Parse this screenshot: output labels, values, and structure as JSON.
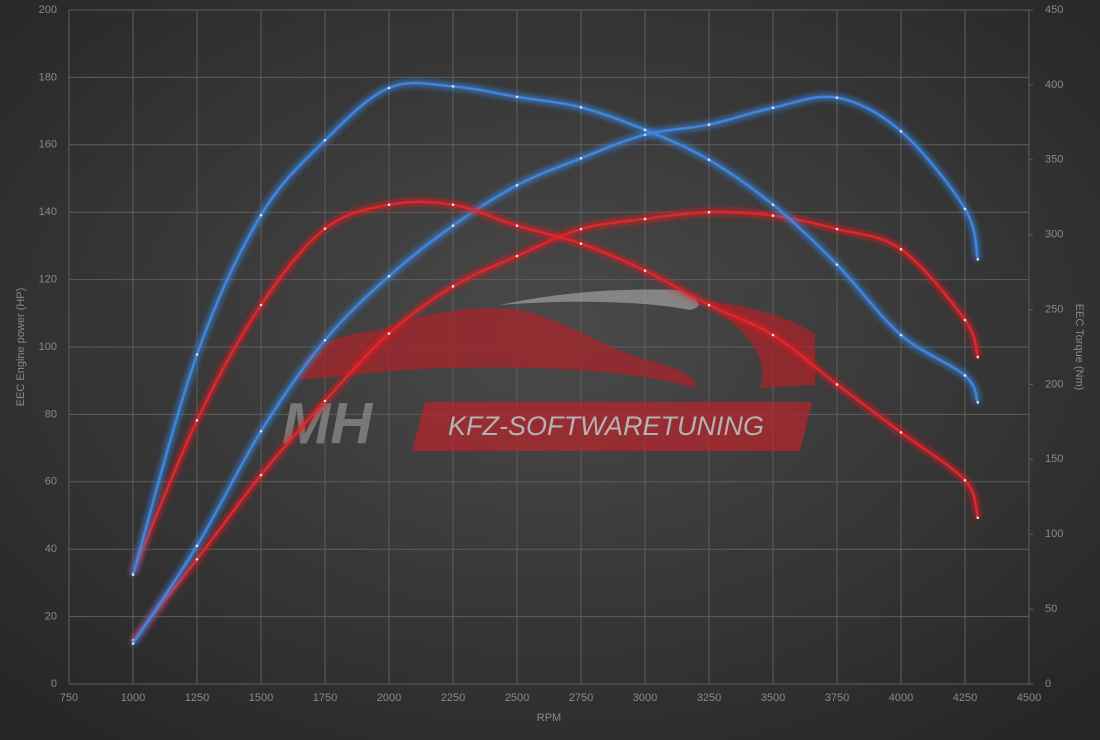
{
  "chart_data": {
    "type": "line",
    "x_label": "RPM",
    "y_label": "EEC Engine power (HP)",
    "y2_label": "EEC Torque (Nm)",
    "watermark_logo": "MH",
    "watermark_text": "KFZ-SOFTWARETUNING",
    "x": [
      1000,
      1250,
      1500,
      1750,
      2000,
      2250,
      2500,
      2750,
      3000,
      3250,
      3500,
      3750,
      4000,
      4250,
      4300
    ],
    "xlim": [
      750,
      4500
    ],
    "xticks": [
      750,
      1000,
      1250,
      1500,
      1750,
      2000,
      2250,
      2500,
      2750,
      3000,
      3250,
      3500,
      3750,
      4000,
      4250,
      4500
    ],
    "ylim": [
      0,
      200
    ],
    "yticks": [
      0,
      20,
      40,
      60,
      80,
      100,
      120,
      140,
      160,
      180,
      200
    ],
    "y2lim": [
      0,
      450
    ],
    "y2ticks": [
      0,
      50,
      100,
      150,
      200,
      250,
      300,
      350,
      400,
      450
    ],
    "grid": true,
    "series": [
      {
        "color": "#e0262c",
        "values": [
          13,
          37,
          62,
          84,
          104,
          118,
          127,
          135,
          138,
          140,
          139,
          135,
          129,
          108,
          97
        ]
      },
      {
        "color": "#3d86e0",
        "values": [
          12,
          41,
          75,
          102,
          121,
          136,
          148,
          156,
          163,
          166,
          171,
          174,
          164,
          141,
          126
        ]
      },
      {
        "color": "#e0262c",
        "axis": "y2",
        "values": [
          74,
          176,
          253,
          304,
          320,
          320,
          306,
          294,
          276,
          253,
          233,
          200,
          168,
          136,
          111
        ]
      },
      {
        "color": "#3d86e0",
        "axis": "y2",
        "values": [
          73,
          220,
          313,
          363,
          398,
          399,
          392,
          385,
          370,
          350,
          320,
          280,
          233,
          206,
          188
        ]
      }
    ]
  }
}
